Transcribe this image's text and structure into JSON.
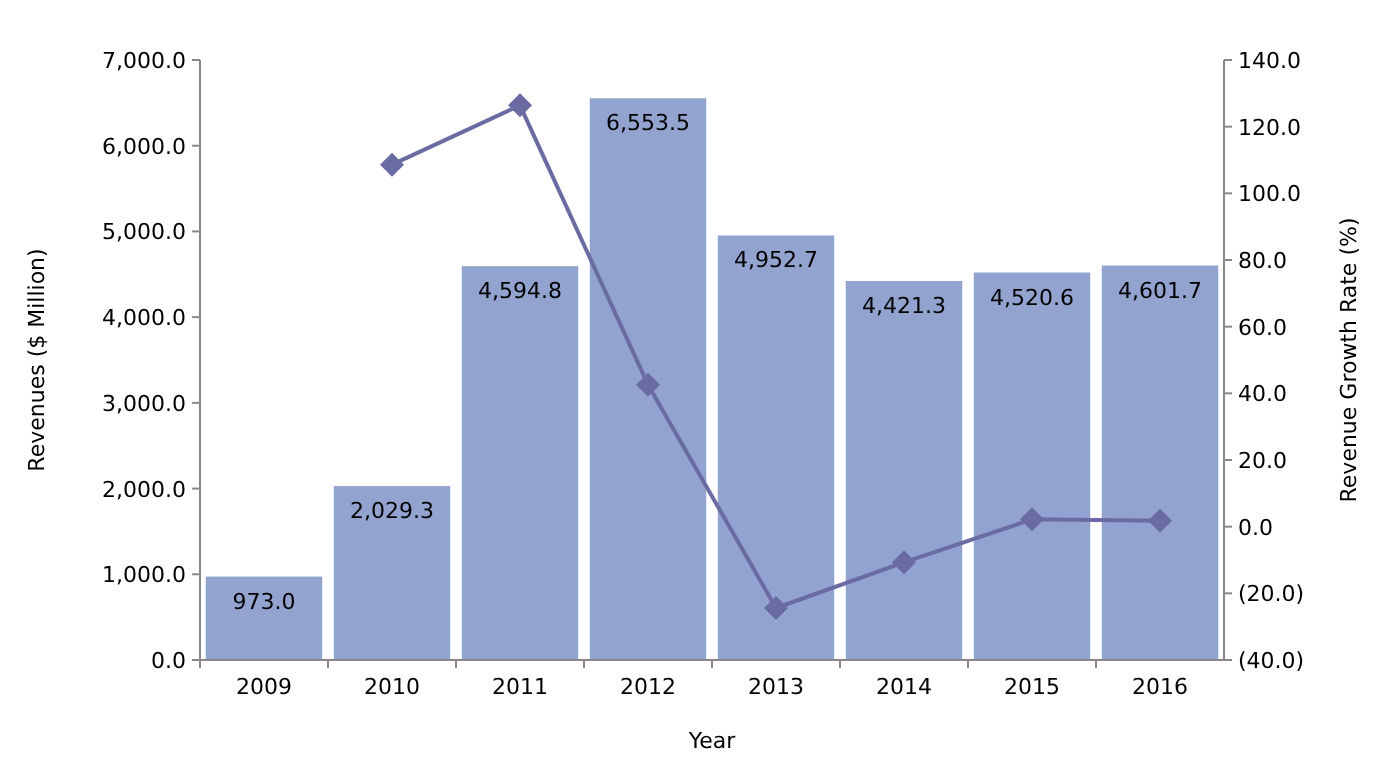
{
  "chart_data": {
    "type": "bar",
    "xlabel": "Year",
    "ylabel": "Revenues ($ Million)",
    "y2label": "Revenue Growth Rate (%)",
    "categories": [
      "2009",
      "2010",
      "2011",
      "2012",
      "2013",
      "2014",
      "2015",
      "2016"
    ],
    "series": [
      {
        "color": "#92a3d0",
        "values": [
          973.0,
          2029.3,
          4594.8,
          6553.5,
          4952.7,
          4421.3,
          4520.6,
          4601.7
        ],
        "value_labels": [
          "973.0",
          "2,029.3",
          "4,594.8",
          "6,553.5",
          "4,952.7",
          "4,421.3",
          "4,520.6",
          "4,601.7"
        ]
      },
      {
        "type": "line",
        "axis": "y2",
        "color": "#6b6ba3",
        "marker": "diamond",
        "values": [
          null,
          108.6,
          126.4,
          42.6,
          -24.4,
          -10.7,
          2.2,
          1.8
        ]
      }
    ],
    "ylim": [
      0,
      7000
    ],
    "yticks": [
      {
        "value": 0,
        "label": "0.0"
      },
      {
        "value": 1000,
        "label": "1,000.0"
      },
      {
        "value": 2000,
        "label": "2,000.0"
      },
      {
        "value": 3000,
        "label": "3,000.0"
      },
      {
        "value": 4000,
        "label": "4,000.0"
      },
      {
        "value": 5000,
        "label": "5,000.0"
      },
      {
        "value": 6000,
        "label": "6,000.0"
      },
      {
        "value": 7000,
        "label": "7,000.0"
      }
    ],
    "y2lim": [
      -40,
      140
    ],
    "y2ticks": [
      {
        "value": -40,
        "label": "(40.0)"
      },
      {
        "value": -20,
        "label": "(20.0)"
      },
      {
        "value": 0,
        "label": "0.0"
      },
      {
        "value": 20,
        "label": "20.0"
      },
      {
        "value": 40,
        "label": "40.0"
      },
      {
        "value": 60,
        "label": "60.0"
      },
      {
        "value": 80,
        "label": "80.0"
      },
      {
        "value": 100,
        "label": "100.0"
      },
      {
        "value": 120,
        "label": "120.0"
      },
      {
        "value": 140,
        "label": "140.0"
      }
    ]
  }
}
